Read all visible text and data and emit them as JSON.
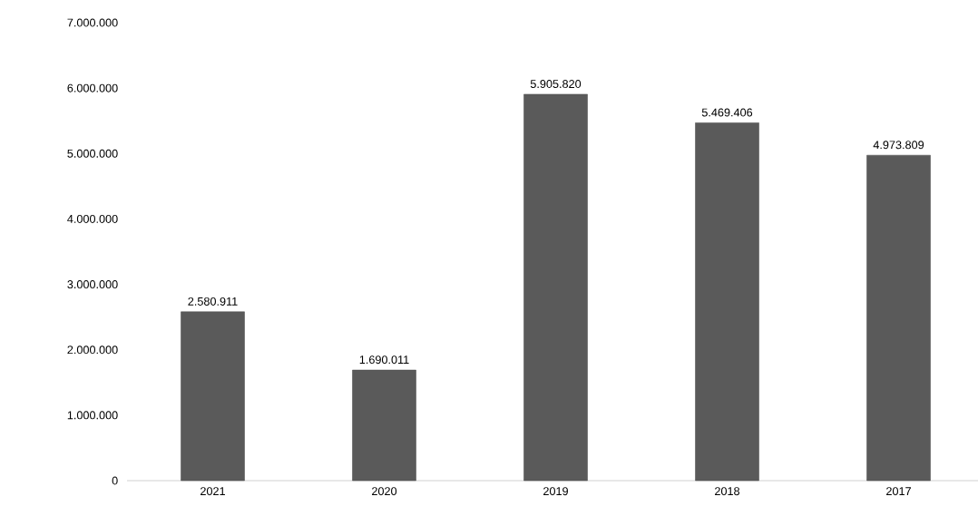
{
  "chart_data": {
    "type": "bar",
    "categories": [
      "2021",
      "2020",
      "2019",
      "2018",
      "2017"
    ],
    "values": [
      2580911,
      1690011,
      5905820,
      5469406,
      4973809
    ],
    "value_labels": [
      "2.580.911",
      "1.690.011",
      "5.905.820",
      "5.469.406",
      "4.973.809"
    ],
    "color": "#5a5a5a",
    "ylim": [
      0,
      7000000
    ],
    "yticks": [
      {
        "value": 0,
        "label": "0"
      },
      {
        "value": 1000000,
        "label": "1.000.000"
      },
      {
        "value": 2000000,
        "label": "2.000.000"
      },
      {
        "value": 3000000,
        "label": "3.000.000"
      },
      {
        "value": 4000000,
        "label": "4.000.000"
      },
      {
        "value": 5000000,
        "label": "5.000.000"
      },
      {
        "value": 6000000,
        "label": "6.000.000"
      },
      {
        "value": 7000000,
        "label": "7.000.000"
      }
    ]
  }
}
